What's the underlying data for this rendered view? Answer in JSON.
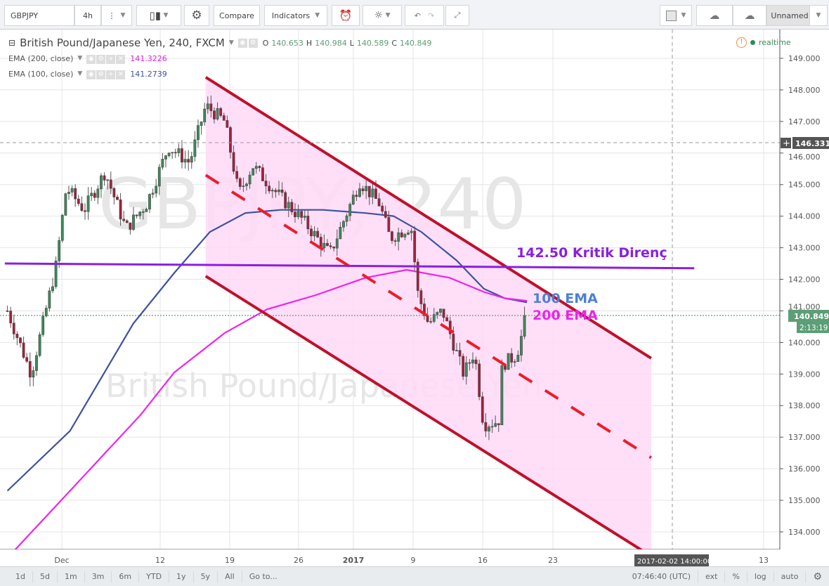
{
  "toolbar": {
    "symbol": "GBPJPY",
    "interval": "4h",
    "compare": "Compare",
    "indicators": "Indicators",
    "layout_name": "Unnamed"
  },
  "legend": {
    "title": "British Pound/Japanese Yen, 240, FXCM",
    "o_label": "O",
    "o": "140.653",
    "h_label": "H",
    "h": "140.984",
    "l_label": "L",
    "l": "140.589",
    "c_label": "C",
    "c": "140.849",
    "ema200_label": "EMA (200, close)",
    "ema200_value": "141.3226",
    "ema100_label": "EMA (100, close)",
    "ema100_value": "141.2739",
    "realtime": "realtime"
  },
  "watermark": {
    "line1": "GBPJPY, 240",
    "line2": "British Pound/Japanese Yen"
  },
  "price_axis": {
    "ticks": [
      "149.000",
      "148.000",
      "147.000",
      "146.000",
      "145.000",
      "144.000",
      "143.000",
      "142.000",
      "141.000",
      "140.000",
      "139.000",
      "138.000",
      "137.000",
      "136.000",
      "135.000",
      "134.000"
    ],
    "crosshair_price": "146.331",
    "last_price": "140.849",
    "countdown": "2:13:19"
  },
  "time_axis": {
    "ticks": [
      "Dec",
      "12",
      "19",
      "26",
      "2017",
      "9",
      "16",
      "23",
      "13"
    ],
    "crosshair_time": "2017-02-02 14:00:00"
  },
  "annotations": {
    "resistance": "142.50 Kritik Direnç",
    "ema100": "100 EMA",
    "ema200": "200 EMA"
  },
  "bottombar": {
    "ranges": [
      "1d",
      "5d",
      "1m",
      "3m",
      "6m",
      "YTD",
      "1y",
      "5y",
      "All",
      "Go to..."
    ],
    "clock": "07:46:40 (UTC)",
    "ext": "ext",
    "percent": "%",
    "log": "log",
    "auto": "auto"
  },
  "colors": {
    "ema100": "#3f51a0",
    "ema200": "#ee22ee",
    "channel": "#c0102a",
    "channel_fill": "#ffd9f7",
    "resistance": "#8a1fe0",
    "up": "#3d8a5a",
    "down": "#a3203c",
    "label100": "#4a80d8"
  },
  "chart_data": {
    "type": "candlestick",
    "price_range": [
      133.6,
      149.6
    ],
    "close_path": [
      [
        "2016-11-24T22:00",
        141.0
      ],
      [
        "2016-11-27T14:00",
        139.0
      ],
      [
        "2016-11-30T08:00",
        142.4
      ],
      [
        "2016-12-01T12:00",
        144.9
      ],
      [
        "2016-12-03T12:00",
        144.2
      ],
      [
        "2016-12-05T20:00",
        145.4
      ],
      [
        "2016-12-08T04:00",
        143.6
      ],
      [
        "2016-12-10T12:00",
        144.4
      ],
      [
        "2016-12-12T20:00",
        146.2
      ],
      [
        "2016-12-14T23:00",
        145.7
      ],
      [
        "2016-12-16T14:00",
        147.5
      ],
      [
        "2016-12-18T12:00",
        147.0
      ],
      [
        "2016-12-19T22:00",
        144.7
      ],
      [
        "2016-12-21T08:00",
        145.6
      ],
      [
        "2016-12-24T04:00",
        144.6
      ],
      [
        "2016-12-26T11:00",
        143.9
      ],
      [
        "2016-12-30T00:00",
        142.8
      ],
      [
        "2017-01-02T18:00",
        145.1
      ],
      [
        "2017-01-05T01:00",
        144.4
      ],
      [
        "2017-01-06T07:00",
        143.3
      ],
      [
        "2017-01-08T18:00",
        143.7
      ],
      [
        "2017-01-09T12:00",
        141.5
      ],
      [
        "2017-01-10T13:00",
        140.6
      ],
      [
        "2017-01-11T23:00",
        141.0
      ],
      [
        "2017-01-14T02:00",
        139.0
      ],
      [
        "2017-01-15T04:00",
        139.7
      ],
      [
        "2017-01-16T02:00",
        137.4
      ],
      [
        "2017-01-17T14:00",
        137.5
      ],
      [
        "2017-01-17T23:00",
        139.3
      ],
      [
        "2017-01-19T09:00",
        139.6
      ],
      [
        "2017-01-20T10:00",
        140.849
      ]
    ],
    "ema100": [
      [
        "2016-11-24T22:00",
        135.3
      ],
      [
        "2016-12-01T22:00",
        137.2
      ],
      [
        "2016-12-09T00:00",
        140.6
      ],
      [
        "2016-12-13T10:00",
        142.2
      ],
      [
        "2016-12-17T00:00",
        143.5
      ],
      [
        "2016-12-20T14:00",
        144.1
      ],
      [
        "2016-12-24T04:00",
        144.2
      ],
      [
        "2016-12-29T03:00",
        144.2
      ],
      [
        "2017-01-03T10:00",
        144.1
      ],
      [
        "2017-01-06T17:00",
        144.0
      ],
      [
        "2017-01-09T20:00",
        143.5
      ],
      [
        "2017-01-13T09:00",
        142.6
      ],
      [
        "2017-01-16T03:00",
        141.7
      ],
      [
        "2017-01-18T05:00",
        141.4
      ],
      [
        "2017-01-20T10:00",
        141.27
      ]
    ],
    "ema200": [
      [
        "2016-11-25T16:00",
        133.4
      ],
      [
        "2016-12-01T22:00",
        135.3
      ],
      [
        "2016-12-09T19:00",
        137.7
      ],
      [
        "2016-12-13T10:00",
        139.05
      ],
      [
        "2016-12-18T12:00",
        140.3
      ],
      [
        "2016-12-22T19:00",
        141.05
      ],
      [
        "2016-12-28T05:00",
        141.5
      ],
      [
        "2017-01-03T10:00",
        142.05
      ],
      [
        "2017-01-08T06:00",
        142.3
      ],
      [
        "2017-01-12T16:00",
        142.05
      ],
      [
        "2017-01-16T03:00",
        141.6
      ],
      [
        "2017-01-18T05:00",
        141.4
      ],
      [
        "2017-01-20T10:00",
        141.32
      ]
    ],
    "channel_upper": [
      [
        "2016-12-16T14:00",
        148.4
      ],
      [
        "2017-01-31T17:00",
        139.5
      ]
    ],
    "channel_mid": [
      [
        "2016-12-16T14:00",
        145.3
      ],
      [
        "2017-01-31T17:00",
        136.35
      ]
    ],
    "channel_lower": [
      [
        "2016-12-16T14:00",
        142.1
      ],
      [
        "2017-01-30T23:00",
        133.4
      ]
    ],
    "resistance_line": [
      [
        "2016-11-24T15:00",
        142.5
      ],
      [
        "2017-02-05T02:00",
        142.35
      ]
    ]
  }
}
